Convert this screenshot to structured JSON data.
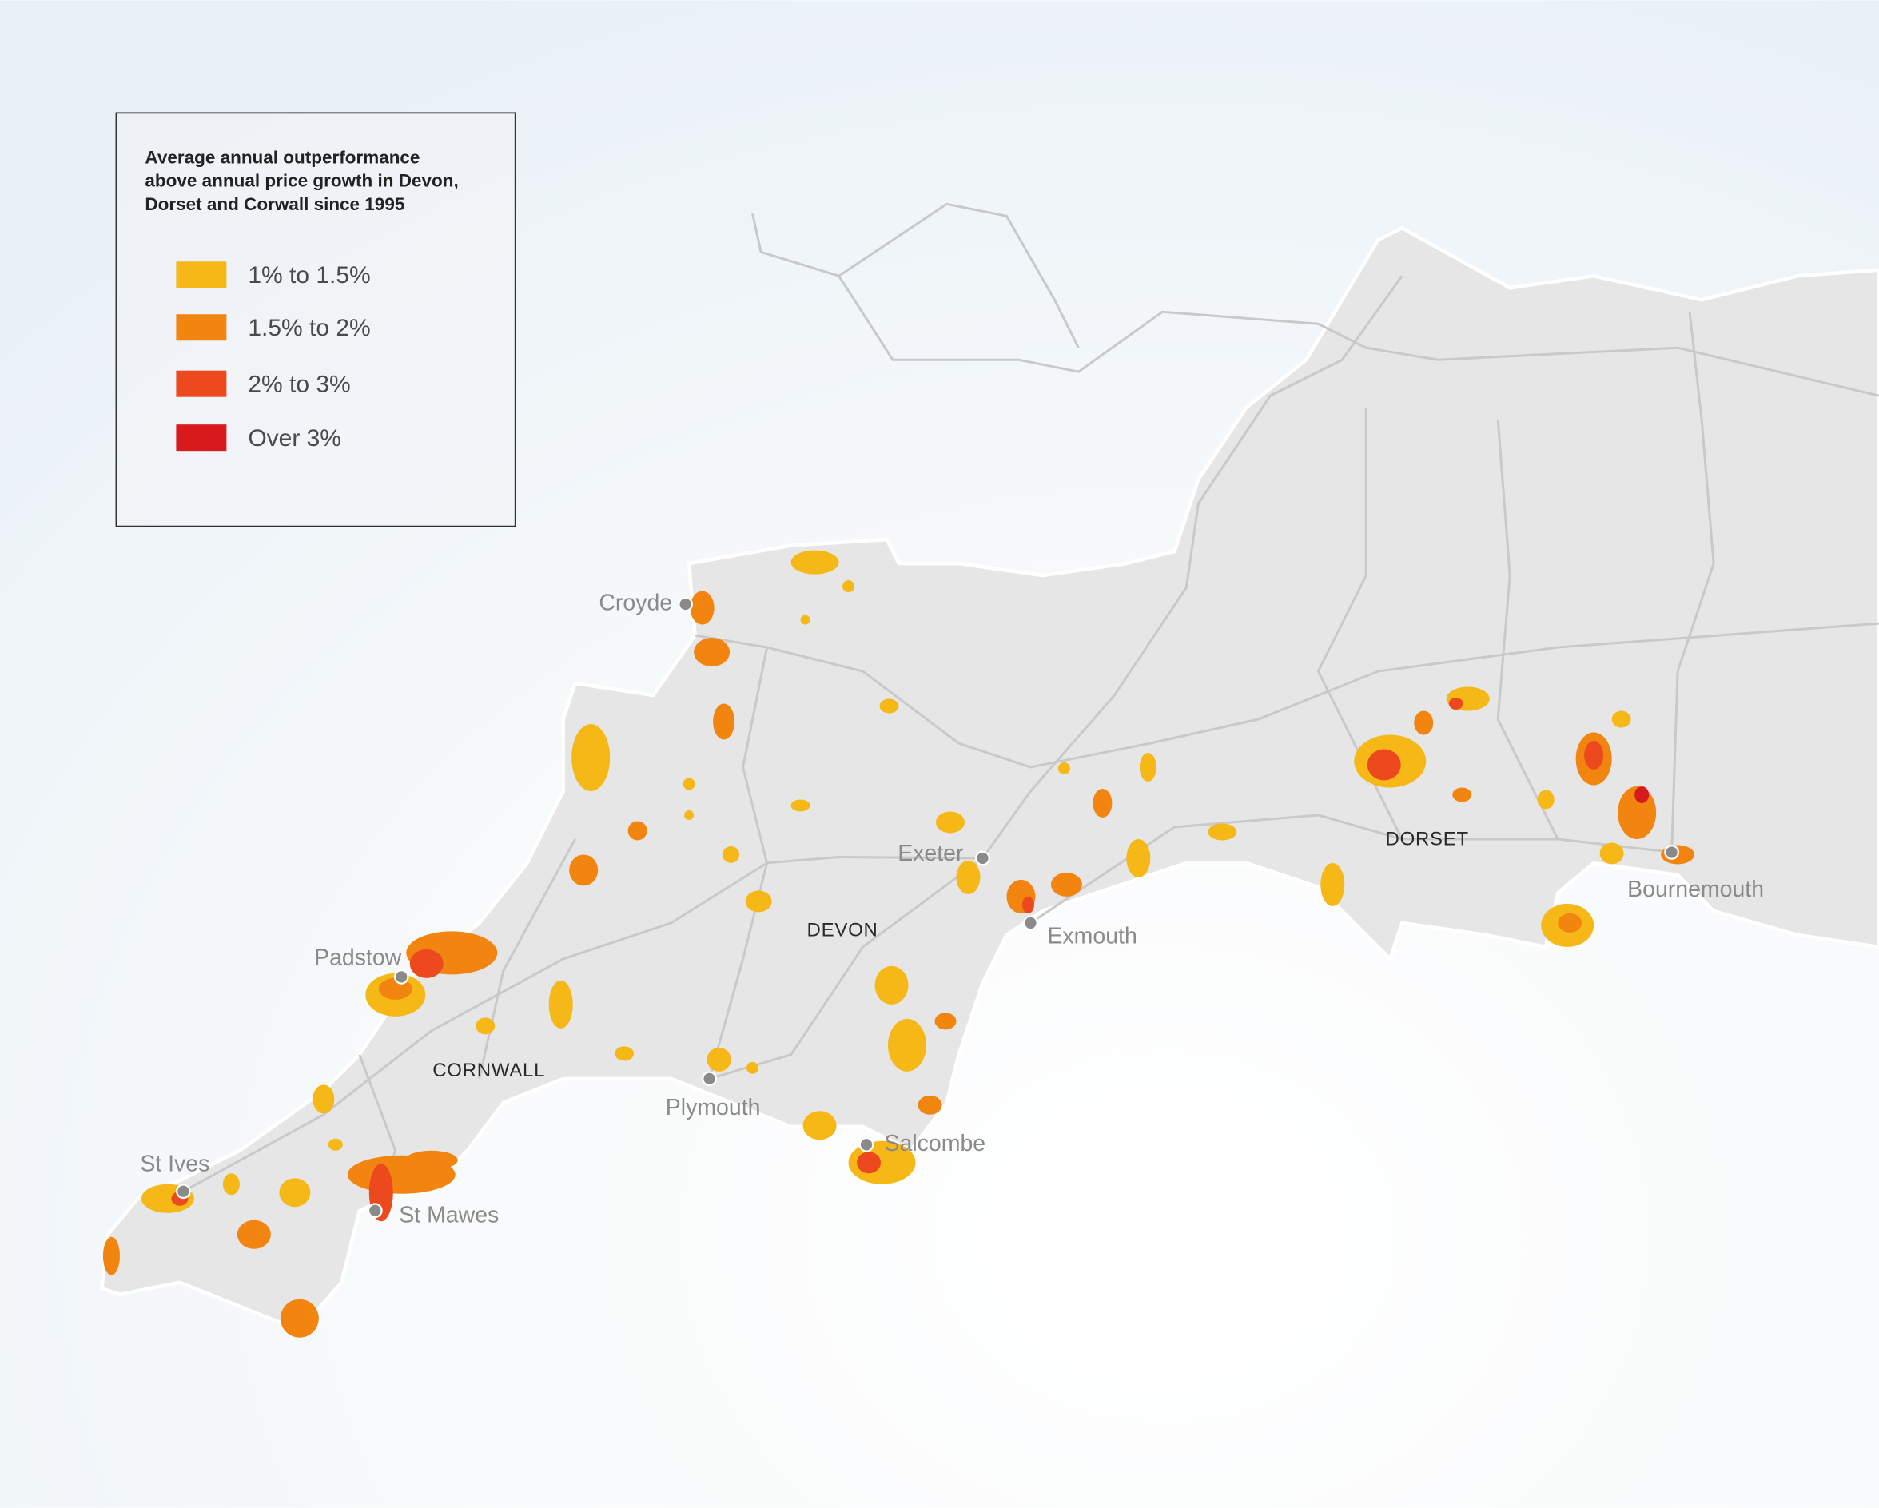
{
  "legend": {
    "title_lines": [
      "Average annual outperformance",
      "above annual price growth in Devon,",
      "Dorset and Corwall since 1995"
    ],
    "items": [
      {
        "label": "1% to 1.5%",
        "color": "#f5b816"
      },
      {
        "label": "1.5% to 2%",
        "color": "#f28410"
      },
      {
        "label": "2% to 3%",
        "color": "#ec4a1e"
      },
      {
        "label": "Over 3%",
        "color": "#d91a1c"
      }
    ]
  },
  "places": [
    {
      "name": "Croyde"
    },
    {
      "name": "Padstow"
    },
    {
      "name": "St Ives"
    },
    {
      "name": "St Mawes"
    },
    {
      "name": "Plymouth"
    },
    {
      "name": "Salcombe"
    },
    {
      "name": "Exeter"
    },
    {
      "name": "Exmouth"
    },
    {
      "name": "Bournemouth"
    }
  ],
  "regions": [
    {
      "name": "DEVON"
    },
    {
      "name": "CORNWALL"
    },
    {
      "name": "DORSET"
    }
  ]
}
